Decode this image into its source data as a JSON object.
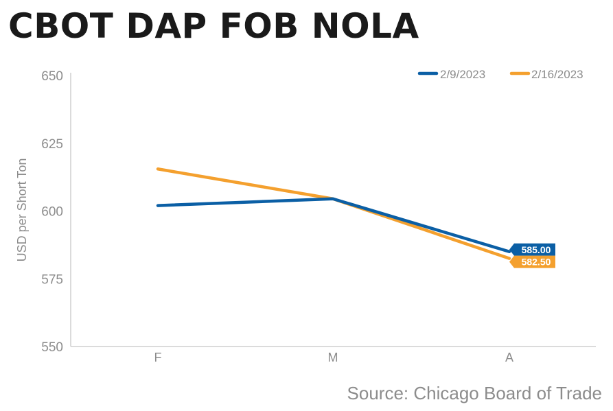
{
  "page": {
    "source": "Source: Chicago Board of Trade"
  },
  "chart_data": {
    "type": "line",
    "title": "CBOT DAP FOB NOLA",
    "xlabel": "",
    "ylabel": "USD per Short Ton",
    "categories": [
      "F",
      "M",
      "A"
    ],
    "ylim": [
      550,
      650
    ],
    "yticks": [
      650,
      625,
      600,
      575,
      550
    ],
    "grid": false,
    "legend_position": "top-right",
    "series": [
      {
        "name": "2/9/2023",
        "color": "#0b5fa5",
        "values": [
          602.0,
          604.5,
          585.0
        ],
        "end_label": "585.00"
      },
      {
        "name": "2/16/2023",
        "color": "#f4a02e",
        "values": [
          615.5,
          604.5,
          582.5
        ],
        "end_label": "582.50"
      }
    ]
  }
}
